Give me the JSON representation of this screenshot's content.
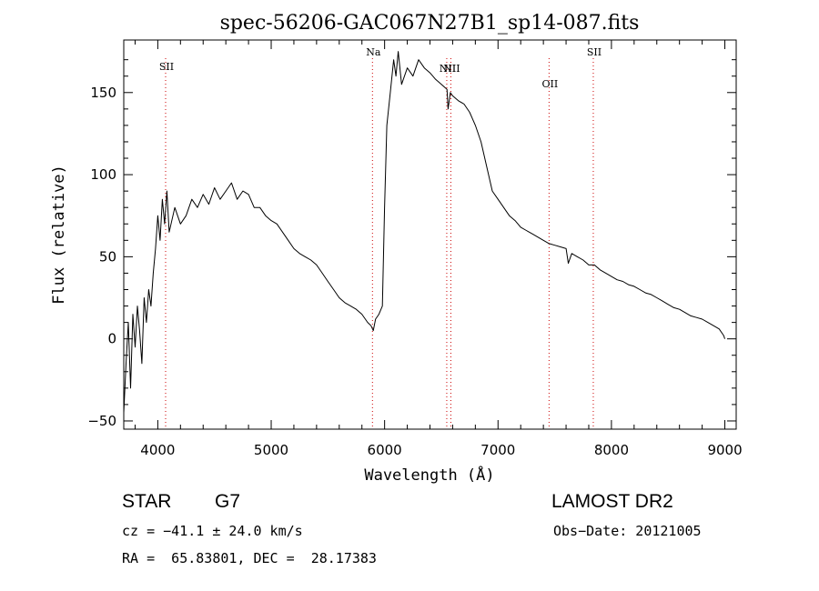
{
  "chart_data": {
    "type": "line",
    "title": "spec-56206-GAC067N27B1_sp14-087.fits",
    "xlabel": "Wavelength (Å)",
    "ylabel": "Flux (relative)",
    "xlim": [
      3700,
      9100
    ],
    "ylim": [
      -55,
      182
    ],
    "x_ticks": [
      4000,
      5000,
      6000,
      7000,
      8000,
      9000
    ],
    "y_ticks": [
      -50,
      0,
      50,
      100,
      150
    ],
    "grid": false,
    "line_color": "#000000",
    "marker_color": "#cc0000",
    "series": [
      {
        "x": [
          3700,
          3720,
          3740,
          3760,
          3780,
          3800,
          3820,
          3840,
          3860,
          3880,
          3900,
          3920,
          3940,
          3960,
          3980,
          4000,
          4020,
          4040,
          4060,
          4080,
          4100,
          4150,
          4200,
          4250,
          4300,
          4350,
          4400,
          4450,
          4500,
          4550,
          4600,
          4650,
          4700,
          4750,
          4800,
          4850,
          4900,
          4950,
          5000,
          5050,
          5100,
          5150,
          5200,
          5250,
          5300,
          5350,
          5400,
          5450,
          5500,
          5550,
          5600,
          5650,
          5700,
          5750,
          5800,
          5850,
          5880,
          5900,
          5920,
          5950,
          5980,
          6000,
          6020,
          6050,
          6080,
          6100,
          6120,
          6150,
          6200,
          6250,
          6300,
          6350,
          6400,
          6450,
          6500,
          6550,
          6560,
          6580,
          6600,
          6650,
          6700,
          6750,
          6800,
          6850,
          6900,
          6950,
          7000,
          7050,
          7100,
          7150,
          7200,
          7250,
          7300,
          7350,
          7400,
          7450,
          7500,
          7550,
          7600,
          7620,
          7650,
          7700,
          7750,
          7800,
          7850,
          7900,
          7950,
          8000,
          8050,
          8100,
          8150,
          8200,
          8250,
          8300,
          8350,
          8400,
          8450,
          8500,
          8550,
          8600,
          8650,
          8700,
          8750,
          8800,
          8850,
          8900,
          8950,
          8990,
          9000
        ],
        "y": [
          -45,
          -15,
          10,
          -30,
          15,
          -5,
          20,
          5,
          -15,
          25,
          10,
          30,
          20,
          40,
          55,
          75,
          60,
          85,
          70,
          90,
          65,
          80,
          70,
          75,
          85,
          80,
          88,
          82,
          92,
          85,
          90,
          95,
          85,
          90,
          88,
          80,
          80,
          75,
          72,
          70,
          65,
          60,
          55,
          52,
          50,
          48,
          45,
          40,
          35,
          30,
          25,
          22,
          20,
          18,
          15,
          10,
          8,
          5,
          12,
          15,
          20,
          80,
          130,
          150,
          170,
          160,
          175,
          155,
          165,
          160,
          170,
          165,
          162,
          158,
          155,
          152,
          140,
          150,
          148,
          145,
          143,
          138,
          130,
          120,
          105,
          90,
          85,
          80,
          75,
          72,
          68,
          66,
          64,
          62,
          60,
          58,
          57,
          56,
          55,
          46,
          52,
          50,
          48,
          45,
          45,
          42,
          40,
          38,
          36,
          35,
          33,
          32,
          30,
          28,
          27,
          25,
          23,
          21,
          19,
          18,
          16,
          14,
          13,
          12,
          10,
          8,
          6,
          2,
          0
        ]
      }
    ],
    "emission_lines": [
      {
        "label": "SII",
        "wavelength": 4069
      },
      {
        "label": "Na",
        "wavelength": 5893
      },
      {
        "label": "NII",
        "wavelength": 6548
      },
      {
        "label": "NII",
        "wavelength": 6584
      },
      {
        "label": "OII",
        "wavelength": 7450
      },
      {
        "label": "SII",
        "wavelength": 7840
      }
    ]
  },
  "info": {
    "class": "STAR",
    "subclass": "G7",
    "survey": "LAMOST DR2",
    "cz": "cz = −41.1 ± 24.0 km/s",
    "obs_date": "Obs−Date: 20121005",
    "coords": "RA =  65.83801, DEC =  28.17383"
  }
}
